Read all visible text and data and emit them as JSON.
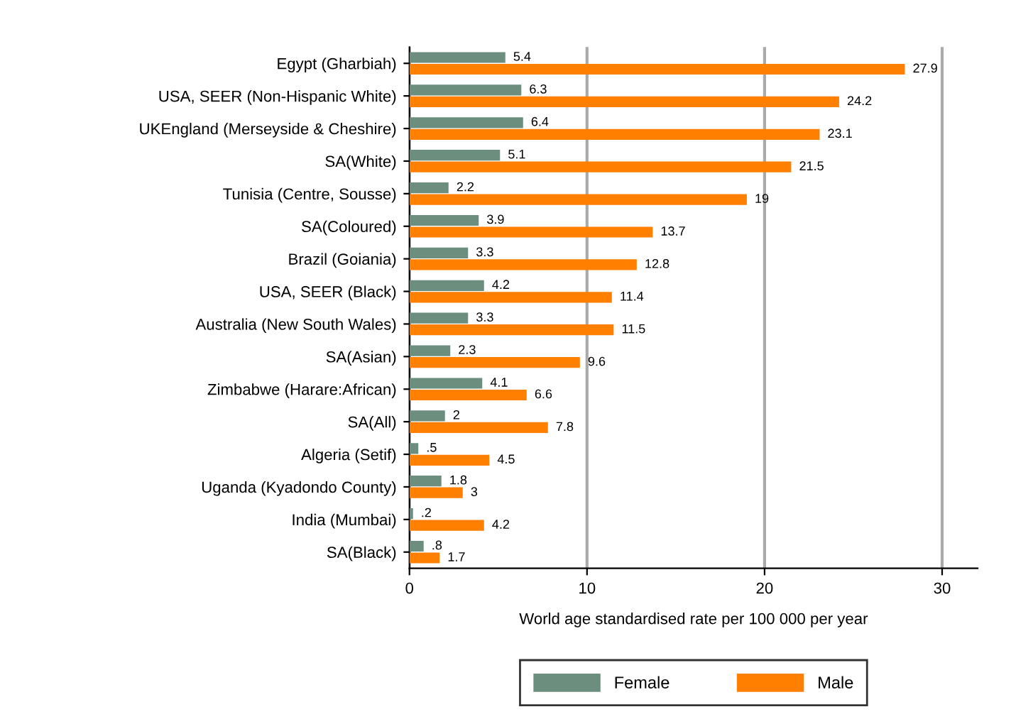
{
  "chart_data": {
    "type": "bar",
    "orientation": "horizontal",
    "xlabel": "World age standardised rate per 100 000 per year",
    "categories": [
      "Egypt (Gharbiah)",
      "USA, SEER (Non-Hispanic White)",
      "UKEngland (Merseyside & Cheshire)",
      "SA(White)",
      "Tunisia (Centre, Sousse)",
      "SA(Coloured)",
      "Brazil (Goiania)",
      "USA, SEER (Black)",
      "Australia (New South Wales)",
      "SA(Asian)",
      "Zimbabwe (Harare:African)",
      "SA(All)",
      "Algeria (Setif)",
      "Uganda (Kyadondo County)",
      "India (Mumbai)",
      "SA(Black)"
    ],
    "series": [
      {
        "name": "Female",
        "color": "#6b8e7e",
        "values": [
          5.4,
          6.3,
          6.4,
          5.1,
          2.2,
          3.9,
          3.3,
          4.2,
          3.3,
          2.3,
          4.1,
          2,
          0.5,
          1.8,
          0.2,
          0.8
        ],
        "value_labels": [
          "5.4",
          "6.3",
          "6.4",
          "5.1",
          "2.2",
          "3.9",
          "3.3",
          "4.2",
          "3.3",
          "2.3",
          "4.1",
          "2",
          ".5",
          "1.8",
          ".2",
          ".8"
        ]
      },
      {
        "name": "Male",
        "color": "#ff7f00",
        "values": [
          27.9,
          24.2,
          23.1,
          21.5,
          19,
          13.7,
          12.8,
          11.4,
          11.5,
          9.6,
          6.6,
          7.8,
          4.5,
          3,
          4.2,
          1.7
        ],
        "value_labels": [
          "27.9",
          "24.2",
          "23.1",
          "21.5",
          "19",
          "13.7",
          "12.8",
          "11.4",
          "11.5",
          "9.6",
          "6.6",
          "7.8",
          "4.5",
          "3",
          "4.2",
          "1.7"
        ]
      }
    ],
    "xlim": [
      0,
      32
    ],
    "xticks": [
      0,
      10,
      20,
      30
    ],
    "grid": "x",
    "legend": "bottom"
  }
}
